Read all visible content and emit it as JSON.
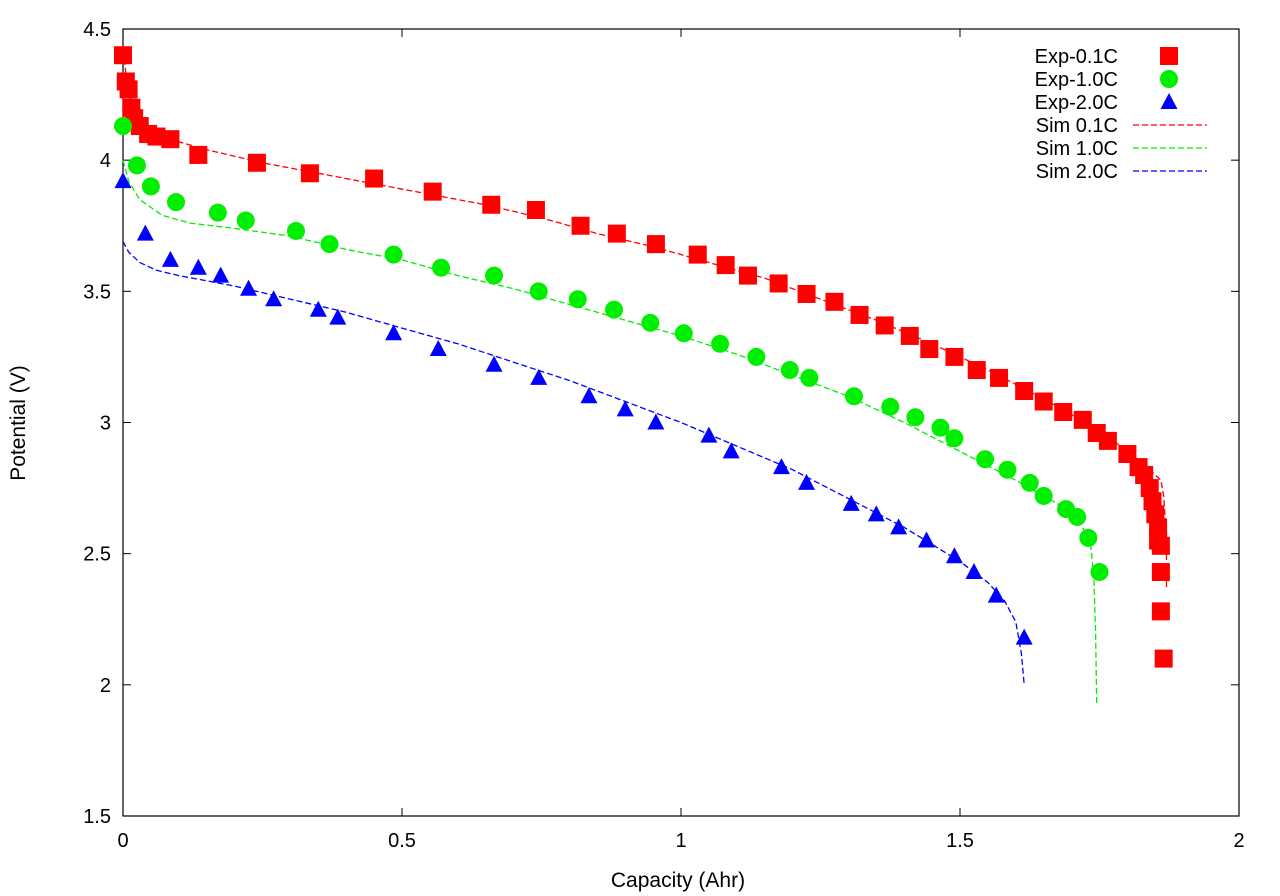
{
  "chart_data": {
    "type": "scatter",
    "xlabel": "Capacity (Ahr)",
    "ylabel": "Potential (V)",
    "xlim": [
      0,
      2
    ],
    "ylim": [
      1.5,
      4.5
    ],
    "xticks": [
      0,
      0.5,
      1,
      1.5,
      2
    ],
    "xtick_labels": [
      "0",
      "0.5",
      "1",
      "1.5",
      "2"
    ],
    "yticks": [
      1.5,
      2,
      2.5,
      3,
      3.5,
      4,
      4.5
    ],
    "ytick_labels": [
      "1.5",
      "2",
      "2.5",
      "3",
      "3.5",
      "4",
      "4.5"
    ],
    "grid": false,
    "legend_position": "top-right",
    "series": [
      {
        "name": "Exp-0.1C",
        "kind": "points",
        "marker": "square",
        "color": "#ff0000",
        "x": [
          0.0,
          0.005,
          0.01,
          0.015,
          0.02,
          0.03,
          0.045,
          0.06,
          0.085,
          0.135,
          0.24,
          0.335,
          0.45,
          0.555,
          0.66,
          0.74,
          0.82,
          0.885,
          0.955,
          1.03,
          1.08,
          1.12,
          1.175,
          1.225,
          1.275,
          1.32,
          1.365,
          1.41,
          1.445,
          1.49,
          1.53,
          1.57,
          1.615,
          1.65,
          1.685,
          1.72,
          1.745,
          1.765,
          1.8,
          1.82,
          1.83,
          1.84,
          1.845,
          1.85,
          1.855,
          1.855,
          1.86,
          1.86,
          1.86,
          1.865
        ],
        "y": [
          4.4,
          4.3,
          4.27,
          4.2,
          4.16,
          4.13,
          4.1,
          4.09,
          4.08,
          4.02,
          3.99,
          3.95,
          3.93,
          3.88,
          3.83,
          3.81,
          3.75,
          3.72,
          3.68,
          3.64,
          3.6,
          3.56,
          3.53,
          3.49,
          3.46,
          3.41,
          3.37,
          3.33,
          3.28,
          3.25,
          3.2,
          3.17,
          3.12,
          3.08,
          3.04,
          3.01,
          2.96,
          2.93,
          2.88,
          2.83,
          2.8,
          2.75,
          2.7,
          2.65,
          2.6,
          2.55,
          2.53,
          2.43,
          2.28,
          2.1
        ]
      },
      {
        "name": "Exp-1.0C",
        "kind": "points",
        "marker": "circle",
        "color": "#00ee00",
        "x": [
          0.0,
          0.025,
          0.05,
          0.095,
          0.17,
          0.22,
          0.31,
          0.37,
          0.485,
          0.57,
          0.665,
          0.745,
          0.815,
          0.88,
          0.945,
          1.005,
          1.07,
          1.135,
          1.195,
          1.23,
          1.31,
          1.375,
          1.42,
          1.465,
          1.49,
          1.545,
          1.585,
          1.625,
          1.65,
          1.69,
          1.71,
          1.73,
          1.75
        ],
        "y": [
          4.13,
          3.98,
          3.9,
          3.84,
          3.8,
          3.77,
          3.73,
          3.68,
          3.64,
          3.59,
          3.56,
          3.5,
          3.47,
          3.43,
          3.38,
          3.34,
          3.3,
          3.25,
          3.2,
          3.17,
          3.1,
          3.06,
          3.02,
          2.98,
          2.94,
          2.86,
          2.82,
          2.77,
          2.72,
          2.67,
          2.64,
          2.56,
          2.43
        ]
      },
      {
        "name": "Exp-2.0C",
        "kind": "points",
        "marker": "triangle",
        "color": "#0000ff",
        "x": [
          0.0,
          0.04,
          0.085,
          0.135,
          0.175,
          0.225,
          0.27,
          0.35,
          0.385,
          0.485,
          0.565,
          0.665,
          0.745,
          0.835,
          0.9,
          0.955,
          1.05,
          1.09,
          1.18,
          1.225,
          1.305,
          1.35,
          1.39,
          1.44,
          1.49,
          1.525,
          1.565,
          1.615
        ],
        "y": [
          3.92,
          3.72,
          3.62,
          3.59,
          3.56,
          3.51,
          3.47,
          3.43,
          3.4,
          3.34,
          3.28,
          3.22,
          3.17,
          3.1,
          3.05,
          3.0,
          2.95,
          2.89,
          2.83,
          2.77,
          2.69,
          2.65,
          2.6,
          2.55,
          2.49,
          2.43,
          2.34,
          2.18
        ]
      },
      {
        "name": "Sim 0.1C",
        "kind": "line",
        "color": "#ff0000",
        "x": [
          0.0,
          0.01,
          0.03,
          0.06,
          0.1,
          0.15,
          0.25,
          0.35,
          0.45,
          0.55,
          0.65,
          0.75,
          0.85,
          0.95,
          1.05,
          1.15,
          1.25,
          1.35,
          1.45,
          1.55,
          1.65,
          1.75,
          1.8,
          1.83,
          1.85,
          1.86,
          1.865,
          1.87,
          1.87
        ],
        "y": [
          4.42,
          4.25,
          4.15,
          4.1,
          4.07,
          4.04,
          3.99,
          3.95,
          3.91,
          3.87,
          3.83,
          3.78,
          3.72,
          3.67,
          3.61,
          3.55,
          3.47,
          3.39,
          3.3,
          3.2,
          3.09,
          2.97,
          2.89,
          2.84,
          2.8,
          2.78,
          2.72,
          2.55,
          2.37
        ]
      },
      {
        "name": "Sim 1.0C",
        "kind": "line",
        "color": "#00ee00",
        "x": [
          0.0,
          0.01,
          0.03,
          0.07,
          0.12,
          0.2,
          0.3,
          0.4,
          0.5,
          0.6,
          0.7,
          0.8,
          0.9,
          1.0,
          1.1,
          1.2,
          1.3,
          1.4,
          1.5,
          1.6,
          1.65,
          1.7,
          1.72,
          1.735,
          1.74,
          1.743,
          1.745
        ],
        "y": [
          4.0,
          3.92,
          3.85,
          3.79,
          3.76,
          3.74,
          3.71,
          3.66,
          3.62,
          3.56,
          3.51,
          3.45,
          3.39,
          3.33,
          3.26,
          3.18,
          3.1,
          3.0,
          2.89,
          2.78,
          2.72,
          2.66,
          2.6,
          2.52,
          2.4,
          2.2,
          1.93
        ]
      },
      {
        "name": "Sim 2.0C",
        "kind": "line",
        "color": "#0000ff",
        "x": [
          0.0,
          0.01,
          0.03,
          0.06,
          0.1,
          0.15,
          0.2,
          0.3,
          0.4,
          0.5,
          0.6,
          0.7,
          0.8,
          0.9,
          1.0,
          1.1,
          1.2,
          1.3,
          1.4,
          1.5,
          1.55,
          1.58,
          1.6,
          1.61,
          1.615
        ],
        "y": [
          3.69,
          3.65,
          3.61,
          3.58,
          3.56,
          3.54,
          3.52,
          3.47,
          3.42,
          3.36,
          3.3,
          3.23,
          3.16,
          3.08,
          3.0,
          2.91,
          2.82,
          2.71,
          2.6,
          2.47,
          2.39,
          2.32,
          2.24,
          2.12,
          2.0
        ]
      }
    ]
  }
}
